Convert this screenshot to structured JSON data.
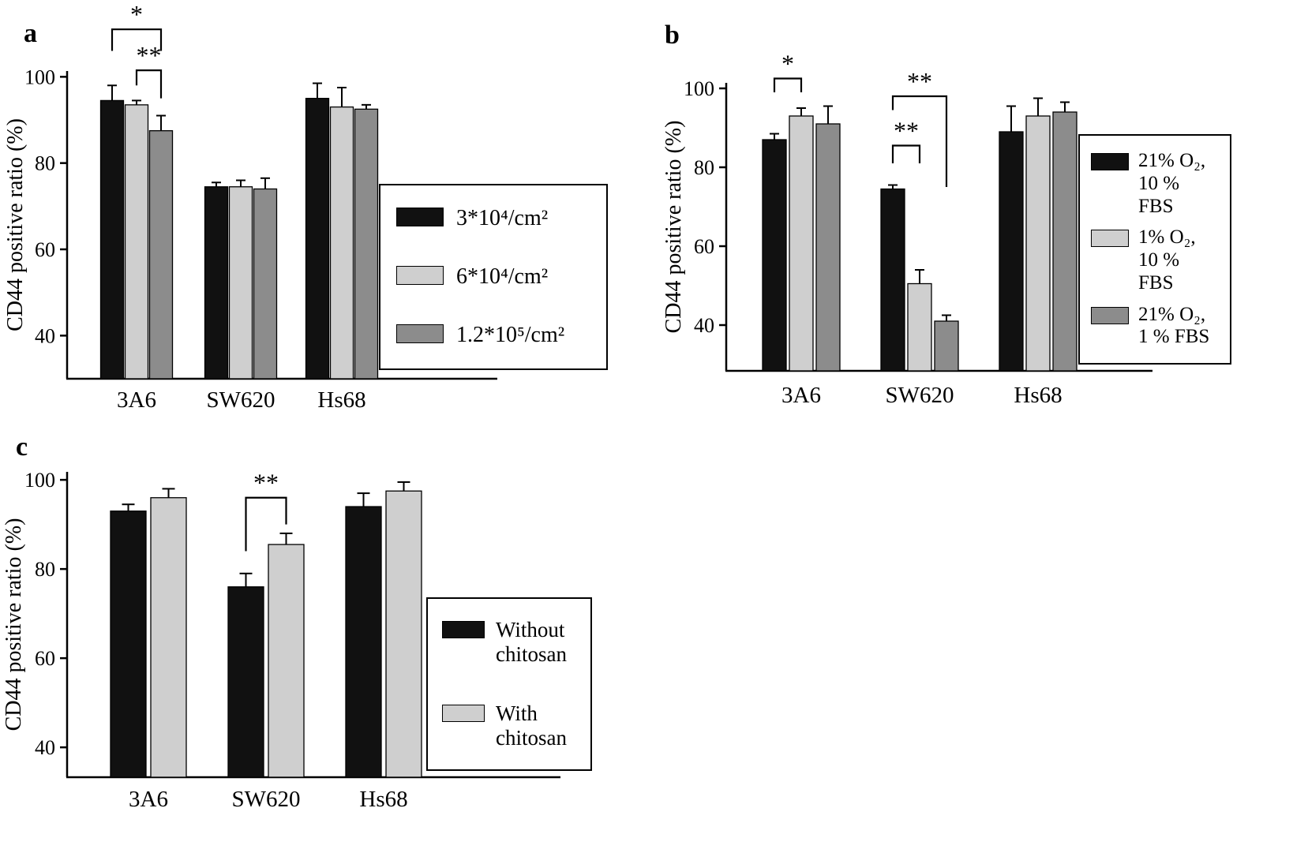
{
  "colors": {
    "black": "#111111",
    "light_gray": "#cfcfcf",
    "dark_gray": "#8c8c8c",
    "axis": "#000000"
  },
  "chart_data": [
    {
      "panel": "a",
      "type": "bar",
      "title": "",
      "ylabel": "CD44 positive ratio (%)",
      "xlabel": "",
      "categories": [
        "3A6",
        "SW620",
        "Hs68"
      ],
      "yticks": [
        40,
        60,
        80,
        100
      ],
      "ylim": [
        30,
        100
      ],
      "grid": false,
      "legend_position": "right-overlap",
      "series": [
        {
          "name": "3*10⁴/cm²",
          "color": "#111111",
          "values": [
            94.5,
            74.5,
            95.0
          ],
          "errors": [
            3.5,
            1.0,
            3.5
          ]
        },
        {
          "name": "6*10⁴/cm²",
          "color": "#cfcfcf",
          "values": [
            93.5,
            74.5,
            93.0
          ],
          "errors": [
            1.0,
            1.5,
            4.5
          ]
        },
        {
          "name": "1.2*10⁵/cm²",
          "color": "#8c8c8c",
          "values": [
            87.5,
            74.0,
            92.5
          ],
          "errors": [
            3.5,
            2.5,
            1.0
          ]
        }
      ],
      "significance": [
        {
          "label": "*",
          "group": 0,
          "bar_from": 0,
          "bar_to": 2,
          "y": 111.0,
          "y_end_from": 106.0,
          "y_end_to": 106.0
        },
        {
          "label": "**",
          "group": 0,
          "bar_from": 1,
          "bar_to": 2,
          "y": 101.5,
          "y_end_from": 98.0,
          "y_end_to": 95.0
        }
      ]
    },
    {
      "panel": "b",
      "type": "bar",
      "title": "",
      "ylabel": "CD44 positive ratio (%)",
      "xlabel": "",
      "categories": [
        "3A6",
        "SW620",
        "Hs68"
      ],
      "yticks": [
        40,
        60,
        80,
        100
      ],
      "ylim": [
        28,
        100
      ],
      "grid": false,
      "legend_position": "right-overlap",
      "series": [
        {
          "name": "21% O₂,\n10 % FBS",
          "color": "#111111",
          "values": [
            87.0,
            74.5,
            89.0
          ],
          "errors": [
            1.5,
            1.0,
            6.5
          ]
        },
        {
          "name": "1% O₂,\n10 % FBS",
          "color": "#cfcfcf",
          "values": [
            93.0,
            50.5,
            93.0
          ],
          "errors": [
            2.0,
            3.5,
            4.5
          ]
        },
        {
          "name": "21% O₂,\n1 % FBS",
          "color": "#8c8c8c",
          "values": [
            91.0,
            41.0,
            94.0
          ],
          "errors": [
            4.5,
            1.5,
            2.5
          ]
        }
      ],
      "significance": [
        {
          "label": "*",
          "group": 0,
          "bar_from": 0,
          "bar_to": 1,
          "y": 102.5,
          "y_end_from": 99.0,
          "y_end_to": 99.0
        },
        {
          "label": "**",
          "group": 1,
          "bar_from": 0,
          "bar_to": 2,
          "y": 98.0,
          "y_end_from": 94.5,
          "y_end_to": 75.0
        },
        {
          "label": "**",
          "group": 1,
          "bar_from": 0,
          "bar_to": 1,
          "y": 85.5,
          "y_end_from": 81.0,
          "y_end_to": 81.0
        }
      ]
    },
    {
      "panel": "c",
      "type": "bar",
      "title": "",
      "ylabel": "CD44 positive ratio (%)",
      "xlabel": "",
      "categories": [
        "3A6",
        "SW620",
        "Hs68"
      ],
      "yticks": [
        40,
        60,
        80,
        100
      ],
      "ylim": [
        33,
        100
      ],
      "grid": false,
      "legend_position": "right-overlap",
      "series": [
        {
          "name": "Without\nchitosan",
          "color": "#111111",
          "values": [
            93.0,
            76.0,
            94.0
          ],
          "errors": [
            1.5,
            3.0,
            3.0
          ]
        },
        {
          "name": "With\nchitosan",
          "color": "#cfcfcf",
          "values": [
            96.0,
            85.5,
            97.5
          ],
          "errors": [
            2.0,
            2.5,
            2.0
          ]
        }
      ],
      "significance": [
        {
          "label": "**",
          "group": 1,
          "bar_from": 0,
          "bar_to": 1,
          "y": 96.0,
          "y_end_from": 84.0,
          "y_end_to": 90.0
        }
      ]
    }
  ]
}
